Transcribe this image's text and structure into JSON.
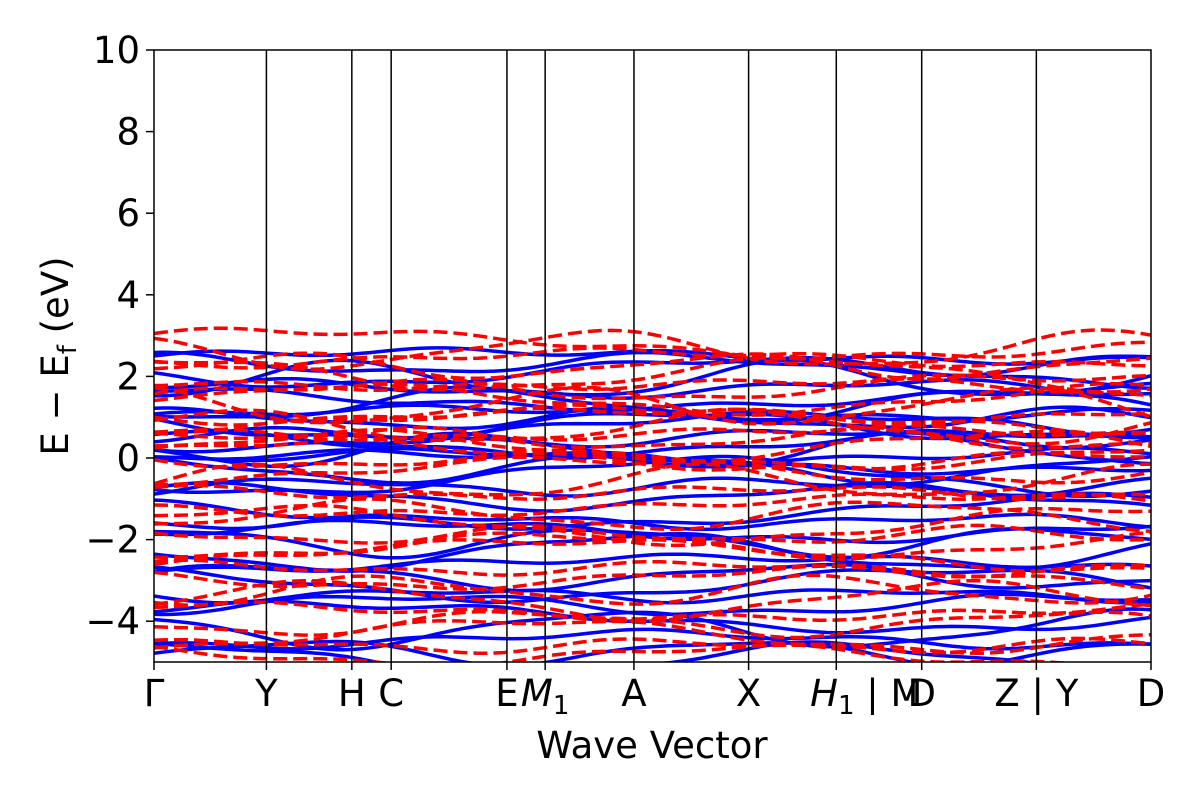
{
  "chart_data": {
    "type": "line",
    "title": "",
    "xlabel": "Wave Vector",
    "ylabel": "E − E",
    "ylabel_subscript": "f",
    "ylabel_unit": "(eV)",
    "ylim": [
      -5,
      10
    ],
    "y_ticks": [
      {
        "value": -4,
        "label": "−4"
      },
      {
        "value": -2,
        "label": "−2"
      },
      {
        "value": 0,
        "label": "0"
      },
      {
        "value": 2,
        "label": "2"
      },
      {
        "value": 4,
        "label": "4"
      },
      {
        "value": 6,
        "label": "6"
      },
      {
        "value": 8,
        "label": "8"
      },
      {
        "value": 10,
        "label": "10"
      }
    ],
    "x_ticks": [
      {
        "pos": 0.0,
        "label": "Γ",
        "sub": ""
      },
      {
        "pos": 1.0,
        "label": "Y",
        "sub": ""
      },
      {
        "pos": 1.76,
        "label": "H",
        "sub": ""
      },
      {
        "pos": 2.11,
        "label": "C",
        "sub": ""
      },
      {
        "pos": 3.14,
        "label": "E",
        "sub": ""
      },
      {
        "pos": 3.48,
        "label": "M",
        "sub": "1",
        "italic": true
      },
      {
        "pos": 4.27,
        "label": "A",
        "sub": ""
      },
      {
        "pos": 5.29,
        "label": "X",
        "sub": ""
      },
      {
        "pos": 6.07,
        "label": "H",
        "sub": "1",
        "italic": true,
        "suffix": " | M"
      },
      {
        "pos": 6.83,
        "label": "D",
        "sub": ""
      },
      {
        "pos": 7.85,
        "label": "Z | Y",
        "sub": ""
      },
      {
        "pos": 8.87,
        "label": "D",
        "sub": ""
      }
    ],
    "xlim": [
      0,
      8.87
    ],
    "grid": false,
    "legend": "none",
    "series": [
      {
        "style": "solid",
        "color": "#0000ff",
        "band_centers": [
          2.5,
          2.3,
          2.1,
          1.9,
          1.7,
          1.5,
          1.3,
          1.1,
          0.95,
          0.8,
          0.65,
          0.5,
          0.35,
          0.2,
          0.05,
          -0.1,
          -0.25,
          -0.45,
          -0.7,
          -0.95,
          -1.3,
          -1.55,
          -1.8,
          -2.05,
          -2.3,
          -2.6,
          -2.9,
          -3.1,
          -3.35,
          -3.6,
          -3.9,
          -4.2,
          -4.45,
          -4.75,
          -4.95
        ]
      },
      {
        "style": "dashed",
        "color": "#ff0000",
        "band_centers": [
          2.8,
          2.65,
          2.45,
          2.25,
          2.05,
          1.85,
          1.65,
          1.45,
          1.25,
          1.05,
          0.9,
          0.75,
          0.6,
          0.45,
          0.3,
          0.15,
          -0.05,
          -0.3,
          -0.6,
          -0.85,
          -1.15,
          -1.4,
          -1.65,
          -1.9,
          -2.15,
          -2.4,
          -2.7,
          -2.95,
          -3.25,
          -3.5,
          -3.75,
          -4.05,
          -4.35,
          -4.6,
          -4.85
        ]
      }
    ]
  }
}
